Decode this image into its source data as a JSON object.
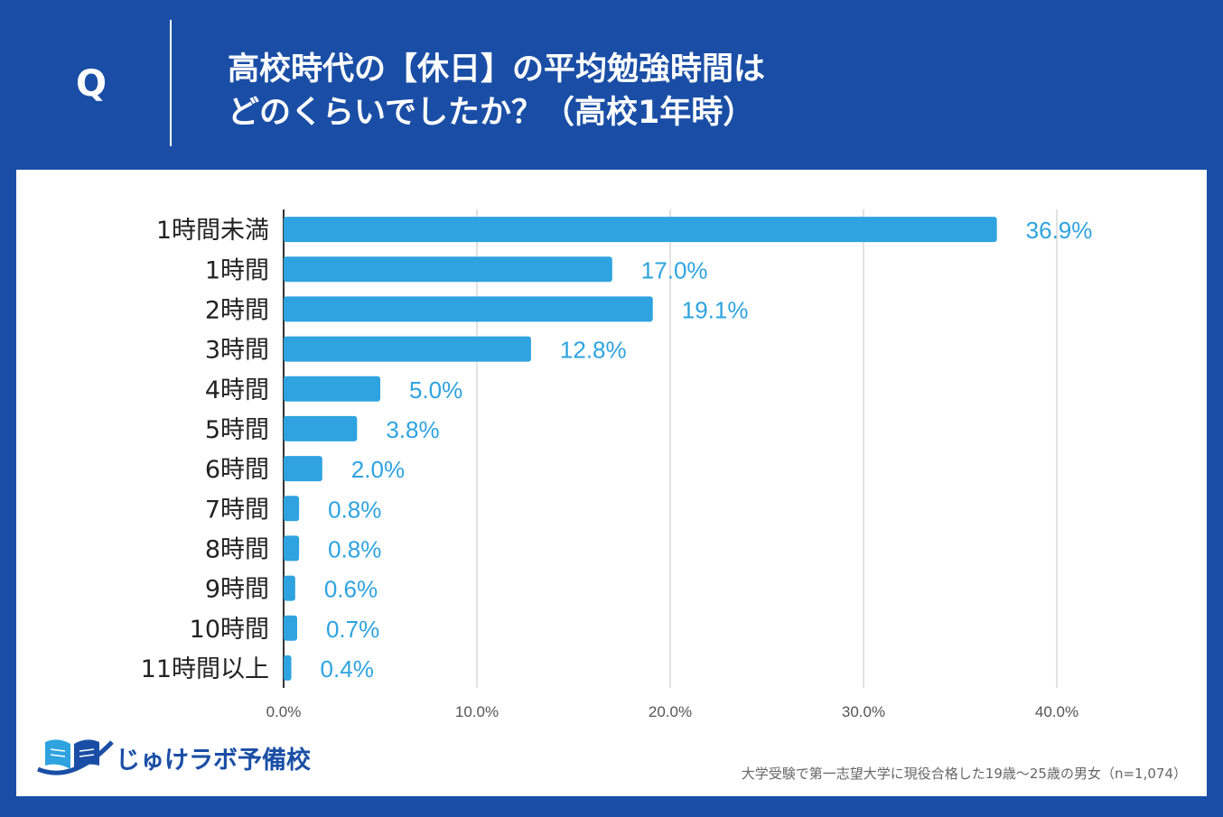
{
  "header": {
    "q_label": "Q",
    "title_line1": "高校時代の【休日】の平均勉強時間は",
    "title_line2": "どのくらいでしたか？（高校1年時）"
  },
  "chart_data": {
    "type": "bar",
    "orientation": "horizontal",
    "categories": [
      "1時間未満",
      "1時間",
      "2時間",
      "3時間",
      "4時間",
      "5時間",
      "6時間",
      "7時間",
      "8時間",
      "9時間",
      "10時間",
      "11時間以上"
    ],
    "values": [
      36.9,
      17.0,
      19.1,
      12.8,
      5.0,
      3.8,
      2.0,
      0.8,
      0.8,
      0.6,
      0.7,
      0.4
    ],
    "value_labels": [
      "36.9%",
      "17.0%",
      "19.1%",
      "12.8%",
      "5.0%",
      "3.8%",
      "2.0%",
      "0.8%",
      "0.8%",
      "0.6%",
      "0.7%",
      "0.4%"
    ],
    "xlim": [
      0,
      40
    ],
    "xticks": [
      0,
      10,
      20,
      30,
      40
    ],
    "xtick_labels": [
      "0.0%",
      "10.0%",
      "20.0%",
      "30.0%",
      "40.0%"
    ],
    "grid": true,
    "bar_color": "#2ea3e0",
    "label_color": "#2ea3e0"
  },
  "logo": {
    "text": "じゅけラボ予備校",
    "icon": "open-book-icon"
  },
  "footnote": "大学受験で第一志望大学に現役合格した19歳～25歳の男女（n=1,074）",
  "colors": {
    "background": "#1a4ea6",
    "panel": "#ffffff",
    "bar": "#2ea3e0"
  }
}
